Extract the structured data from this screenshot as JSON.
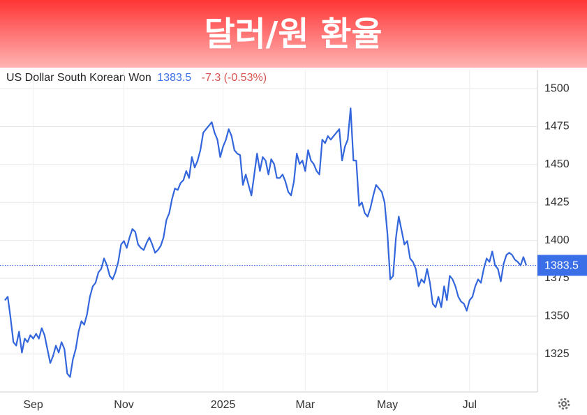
{
  "chart_data": {
    "type": "line",
    "title": "달러/원 환율",
    "subtitle": "US Dollar South Korean Won",
    "price": 1383.5,
    "change": "-7.3 (-0.53%)",
    "color": "#3366dd",
    "price_color": "#3a6fe8",
    "change_color": "#d9534f",
    "grid": true,
    "ylim": [
      1300,
      1512.5
    ],
    "yticks": [
      1325,
      1350,
      1375,
      1400,
      1425,
      1450,
      1475,
      1500
    ],
    "xticks": [
      {
        "value": 10,
        "label": "Sep"
      },
      {
        "value": 42,
        "label": "Nov"
      },
      {
        "value": 77,
        "label": "2025"
      },
      {
        "value": 106,
        "label": "Mar"
      },
      {
        "value": 135,
        "label": "May"
      },
      {
        "value": 164,
        "label": "Jul"
      }
    ],
    "values": [
      1360.5,
      1362.8,
      1349.0,
      1332.9,
      1330.6,
      1339.8,
      1326.0,
      1335.2,
      1332.9,
      1337.5,
      1335.2,
      1338.4,
      1335.2,
      1342.1,
      1337.5,
      1328.3,
      1319.1,
      1323.7,
      1330.6,
      1326.0,
      1332.9,
      1328.3,
      1312.2,
      1309.9,
      1321.4,
      1328.3,
      1339.8,
      1346.7,
      1344.4,
      1351.3,
      1362.8,
      1369.7,
      1372.0,
      1378.9,
      1381.2,
      1388.1,
      1383.5,
      1376.6,
      1374.3,
      1378.9,
      1385.8,
      1397.3,
      1399.6,
      1395.0,
      1401.9,
      1407.5,
      1405.6,
      1397.3,
      1395.0,
      1393.6,
      1398.3,
      1401.9,
      1397.3,
      1391.8,
      1393.6,
      1396.4,
      1401.9,
      1413.4,
      1418.0,
      1427.3,
      1434.2,
      1433.2,
      1437.8,
      1439.7,
      1445.7,
      1441.1,
      1454.9,
      1448.0,
      1452.6,
      1459.5,
      1471.0,
      1473.3,
      1475.6,
      1477.9,
      1471.0,
      1466.4,
      1454.9,
      1461.8,
      1466.4,
      1473.3,
      1468.7,
      1459.5,
      1457.2,
      1456.3,
      1436.5,
      1443.4,
      1436.5,
      1429.6,
      1443.4,
      1457.2,
      1445.7,
      1454.9,
      1452.6,
      1443.4,
      1453.5,
      1450.3,
      1441.1,
      1441.1,
      1443.4,
      1438.8,
      1431.9,
      1429.6,
      1438.8,
      1457.2,
      1450.3,
      1452.6,
      1445.7,
      1459.5,
      1452.6,
      1450.3,
      1445.7,
      1443.4,
      1466.4,
      1464.1,
      1468.7,
      1466.4,
      1468.7,
      1471.0,
      1473.3,
      1452.6,
      1461.8,
      1466.4,
      1487.1,
      1452.6,
      1452.6,
      1422.7,
      1425.0,
      1418.0,
      1415.7,
      1421.3,
      1429.6,
      1436.5,
      1434.2,
      1431.9,
      1425.0,
      1404.2,
      1374.3,
      1376.6,
      1401.9,
      1415.7,
      1406.5,
      1397.3,
      1399.6,
      1388.1,
      1385.8,
      1381.2,
      1369.7,
      1374.3,
      1372.0,
      1381.2,
      1372.0,
      1358.2,
      1355.9,
      1362.8,
      1355.9,
      1369.7,
      1360.5,
      1376.6,
      1374.3,
      1369.7,
      1362.8,
      1359.6,
      1358.2,
      1353.6,
      1360.5,
      1362.8,
      1369.7,
      1374.3,
      1372.0,
      1381.2,
      1388.1,
      1385.8,
      1392.7,
      1383.5,
      1381.2,
      1372.9,
      1384.4,
      1390.4,
      1391.8,
      1390.4,
      1387.2,
      1385.8,
      1383.5,
      1389.0,
      1383.5
    ]
  }
}
